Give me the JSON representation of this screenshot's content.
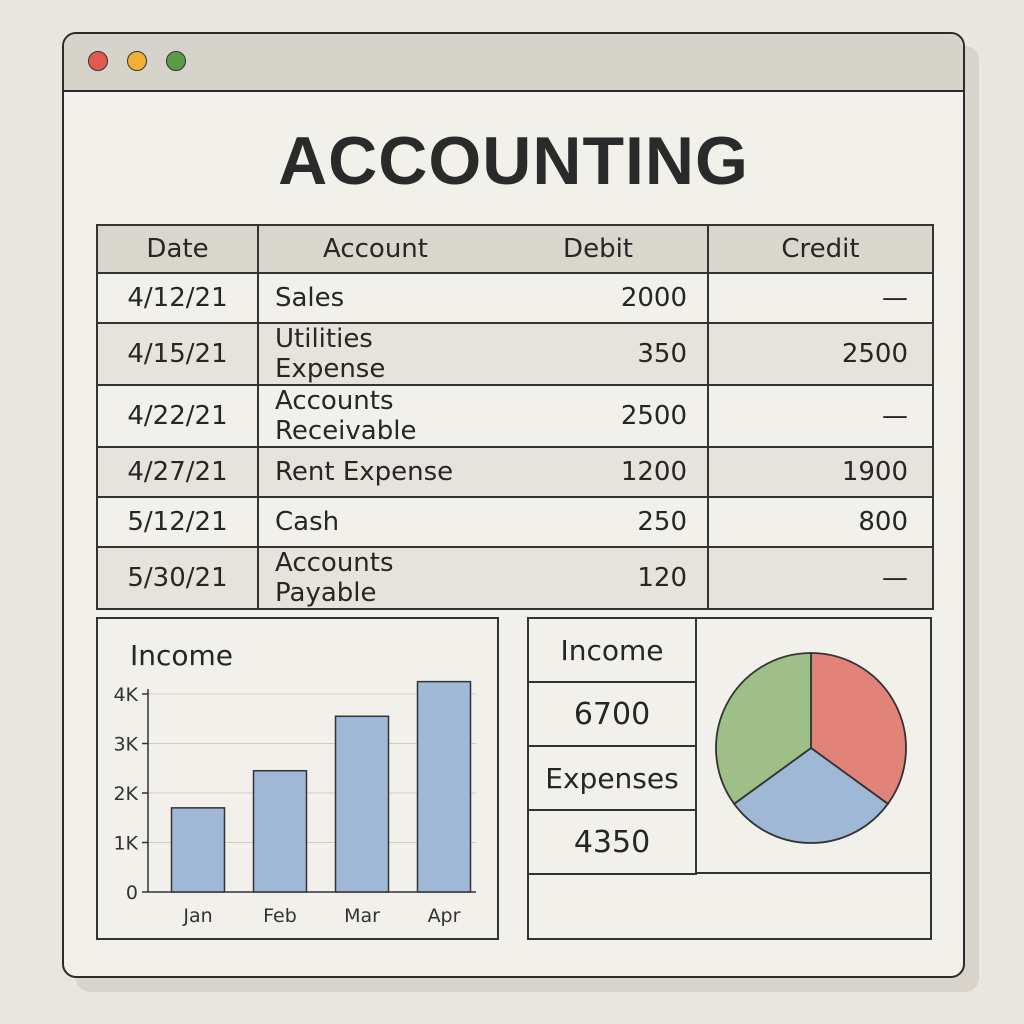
{
  "app": {
    "title": "ACCOUNTING"
  },
  "ledger": {
    "headers": {
      "date": "Date",
      "account": "Account",
      "debit": "Debit",
      "credit": "Credit"
    },
    "rows": [
      {
        "date": "4/12/21",
        "account": "Sales",
        "debit": "2000",
        "credit": "—"
      },
      {
        "date": "4/15/21",
        "account": "Utilities Expense",
        "debit": "350",
        "credit": "2500"
      },
      {
        "date": "4/22/21",
        "account": "Accounts Receivable",
        "debit": "2500",
        "credit": "—"
      },
      {
        "date": "4/27/21",
        "account": "Rent Expense",
        "debit": "1200",
        "credit": "1900"
      },
      {
        "date": "5/12/21",
        "account": "Cash",
        "debit": "250",
        "credit": "800"
      },
      {
        "date": "5/30/21",
        "account": "Accounts Payable",
        "debit": "120",
        "credit": "—"
      }
    ]
  },
  "chart_data": [
    {
      "type": "bar",
      "title": "Income",
      "categories": [
        "Jan",
        "Feb",
        "Mar",
        "Apr"
      ],
      "values": [
        1700,
        2450,
        3550,
        4250
      ],
      "ylim": [
        0,
        4000
      ],
      "yticks": [
        0,
        1000,
        2000,
        3000,
        4000
      ],
      "ytick_labels": [
        "0",
        "1K",
        "2K",
        "3K",
        "4K"
      ],
      "grid": true,
      "bar_color": "#9fb8d6"
    },
    {
      "type": "pie",
      "values": [
        35,
        30,
        35
      ],
      "colors": [
        "#e2837a",
        "#9fb8d6",
        "#9ebf88"
      ]
    }
  ],
  "summary": {
    "income_label": "Income",
    "income_value": "6700",
    "expenses_label": "Expenses",
    "expenses_value": "4350"
  }
}
